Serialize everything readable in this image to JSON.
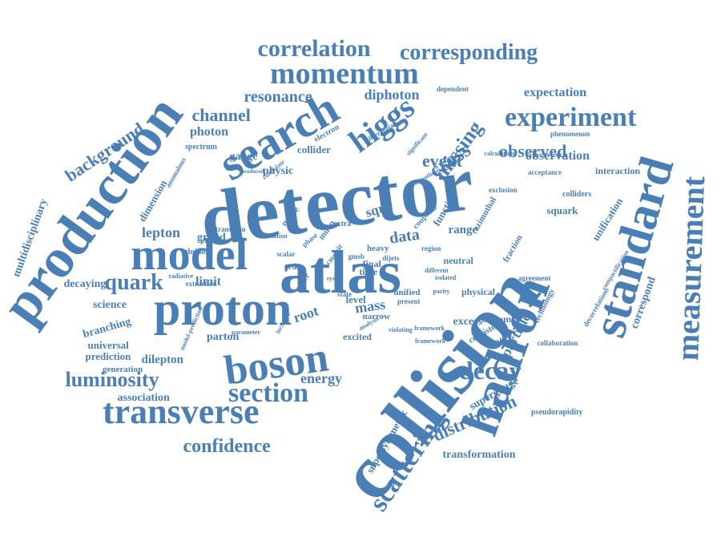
{
  "style": {
    "word_color": "#4a7fb5",
    "background": "#ffffff"
  },
  "words": [
    "collision",
    "detector",
    "atlas",
    "proton",
    "production",
    "boson",
    "model",
    "hadron",
    "standard",
    "measurement",
    "search",
    "transverse",
    "momentum",
    "higgs",
    "section",
    "experiment",
    "quark",
    "luminosity",
    "decay",
    "scattering",
    "correlation",
    "corresponding",
    "missing",
    "cross",
    "confidence",
    "distribution",
    "event",
    "observed",
    "channel",
    "background",
    "resonance",
    "diphoton",
    "expectation",
    "observation",
    "energy",
    "data",
    "root",
    "sqrt",
    "lepton",
    "photon",
    "particle",
    "mass",
    "limit",
    "decaying",
    "branching",
    "science",
    "universal",
    "prediction",
    "dilepton",
    "association",
    "supergauge",
    "supersymmetric",
    "transformation",
    "excess",
    "range",
    "grand",
    "gauge",
    "physic",
    "collider",
    "interaction",
    "multidisciplinary",
    "dimension",
    "anomalous",
    "spectrum",
    "gluinos",
    "electron",
    "differential",
    "dependent",
    "phenomenon",
    "calculation",
    "acceptance",
    "squark",
    "unification",
    "colliders",
    "function",
    "azimuthal",
    "fraction",
    "neutral",
    "compactification",
    "correspond",
    "technology",
    "agreement",
    "physical",
    "bottom",
    "consistent",
    "breaking",
    "collaboration",
    "pseudorapidity",
    "decorrelations",
    "parton",
    "excited",
    "level",
    "narrow",
    "final",
    "time",
    "heavy",
    "muon",
    "masse",
    "extra",
    "unified",
    "present",
    "upper",
    "order",
    "generation",
    "radiative",
    "transition",
    "extraction",
    "previous",
    "scalar",
    "phase",
    "dijets",
    "pair",
    "parameter",
    "deviation",
    "inclusive",
    "coupling",
    "region",
    "significant",
    "candidate",
    "hypothesis",
    "gmsb",
    "state",
    "syst",
    "violating",
    "analysis",
    "framework",
    "produced",
    "exclusion",
    "isolated",
    "different",
    "parity",
    "cms",
    "model-prediction",
    "framework"
  ]
}
